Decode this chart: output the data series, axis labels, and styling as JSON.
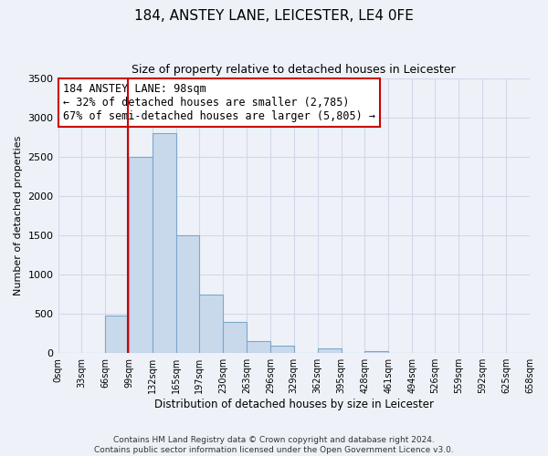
{
  "title": "184, ANSTEY LANE, LEICESTER, LE4 0FE",
  "subtitle": "Size of property relative to detached houses in Leicester",
  "xlabel": "Distribution of detached houses by size in Leicester",
  "ylabel": "Number of detached properties",
  "bin_edges": [
    0,
    33,
    66,
    99,
    132,
    165,
    197,
    230,
    263,
    296,
    329,
    362,
    395,
    428,
    461,
    494,
    526,
    559,
    592,
    625,
    658
  ],
  "bar_heights": [
    0,
    0,
    480,
    2500,
    2800,
    1500,
    750,
    400,
    150,
    100,
    0,
    55,
    0,
    30,
    0,
    0,
    0,
    0,
    0,
    0
  ],
  "bar_color": "#c9d9ec",
  "bar_edge_color": "#7aa8cc",
  "property_line_x": 98,
  "property_line_color": "#cc0000",
  "annotation_text": "184 ANSTEY LANE: 98sqm\n← 32% of detached houses are smaller (2,785)\n67% of semi-detached houses are larger (5,805) →",
  "annotation_box_color": "#ffffff",
  "annotation_box_edge_color": "#cc0000",
  "ylim": [
    0,
    3500
  ],
  "yticks": [
    0,
    500,
    1000,
    1500,
    2000,
    2500,
    3000,
    3500
  ],
  "tick_labels": [
    "0sqm",
    "33sqm",
    "66sqm",
    "99sqm",
    "132sqm",
    "165sqm",
    "197sqm",
    "230sqm",
    "263sqm",
    "296sqm",
    "329sqm",
    "362sqm",
    "395sqm",
    "428sqm",
    "461sqm",
    "494sqm",
    "526sqm",
    "559sqm",
    "592sqm",
    "625sqm",
    "658sqm"
  ],
  "footer_line1": "Contains HM Land Registry data © Crown copyright and database right 2024.",
  "footer_line2": "Contains public sector information licensed under the Open Government Licence v3.0.",
  "grid_color": "#d0d8e8",
  "bg_color": "#eef2f8",
  "plot_bg_color": "#eef2f8",
  "annotation_fontsize": 8.5,
  "title_fontsize": 11,
  "subtitle_fontsize": 9,
  "ylabel_fontsize": 8,
  "xlabel_fontsize": 8.5,
  "footer_fontsize": 6.5,
  "ytick_fontsize": 8,
  "xtick_fontsize": 7
}
